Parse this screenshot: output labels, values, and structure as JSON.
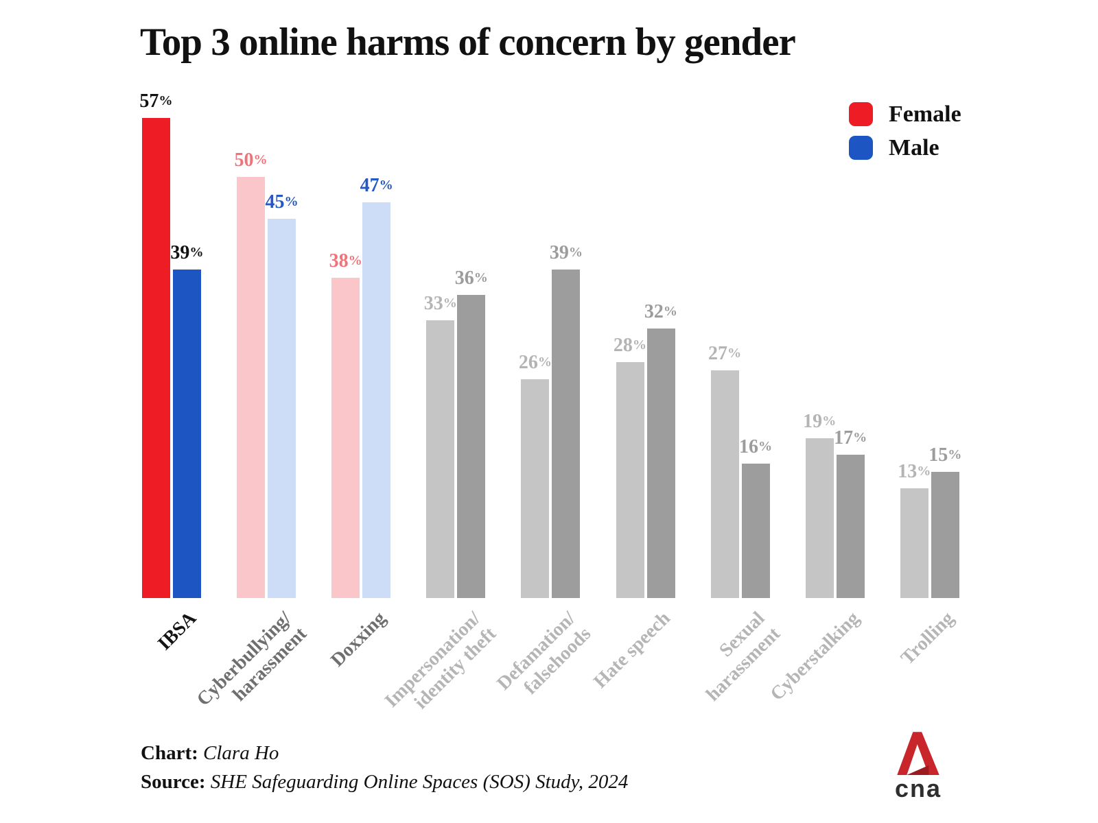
{
  "chart_data": {
    "type": "bar",
    "title": "Top 3 online harms of concern by gender",
    "categories": [
      "IBSA",
      "Cyberbullying/\nharassment",
      "Doxxing",
      "Impersonation/\nidentity theft",
      "Defamation/\nfalsehoods",
      "Hate speech",
      "Sexual\nharassment",
      "Cyberstalking",
      "Trolling"
    ],
    "series": [
      {
        "name": "Female",
        "values": [
          57,
          50,
          38,
          33,
          26,
          28,
          27,
          19,
          13
        ]
      },
      {
        "name": "Male",
        "values": [
          39,
          45,
          47,
          36,
          39,
          32,
          16,
          17,
          15
        ]
      }
    ],
    "unit": "%",
    "ylim": [
      0,
      60
    ],
    "grid": false,
    "legend_position": "top-right",
    "highlight_note": "Top 3 categories colored (IBSA saturated, next two faded); remaining categories gray"
  },
  "legend": {
    "items": [
      {
        "label": "Female",
        "color": "#ee1c25"
      },
      {
        "label": "Male",
        "color": "#1d56c2"
      }
    ]
  },
  "style": {
    "group_styles": [
      "primary",
      "faded",
      "faded",
      "gray",
      "gray",
      "gray",
      "gray",
      "gray",
      "gray"
    ],
    "palettes": {
      "primary": {
        "female_bar": "#ee1c25",
        "male_bar": "#1d56c2",
        "female_label": "#111111",
        "male_label": "#111111",
        "category": "#141414"
      },
      "faded": {
        "female_bar": "#fac6c9",
        "male_bar": "#cdddf8",
        "female_label": "#f1737a",
        "male_label": "#2458c6",
        "category": "#6f6f6f"
      },
      "gray": {
        "female_bar": "#c5c5c5",
        "male_bar": "#9d9d9d",
        "female_label": "#b4b4b4",
        "male_label": "#9c9c9c",
        "category": "#b5b5b5"
      }
    }
  },
  "footer": {
    "credit_label": "Chart",
    "credit_value": "Clara Ho",
    "source_label": "Source",
    "source_value": "SHE Safeguarding Online Spaces (SOS) Study, 2024",
    "separator": ": "
  },
  "logo": {
    "text": "cna",
    "mark_color": "#c9262c",
    "fold_color": "#9b1b20",
    "text_color": "#2e2e2e"
  }
}
